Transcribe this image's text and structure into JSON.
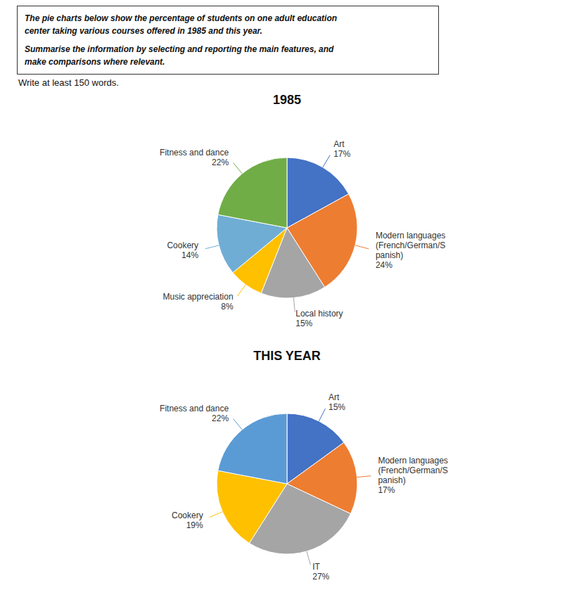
{
  "annotations": [
    "The pie charts below show the percentage of students on one adult education",
    "center taking various courses offered in 1985 and this year.",
    "Summarise the information by selecting and reporting the main features, and",
    "make comparisons where relevant."
  ],
  "subtitle": "Write at least 150 words.",
  "chart_data": [
    {
      "type": "pie",
      "title": "1985",
      "categories": [
        "Art",
        "Modern languages\n(French/German/S\npanish)",
        "Local history",
        "Music appreciation",
        "Cookery",
        "Fitness and dance"
      ],
      "values": [
        17,
        24,
        15,
        8,
        14,
        22
      ],
      "value_labels": [
        "17%",
        "24%",
        "15%",
        "8%",
        "14%",
        "22%"
      ],
      "colors": [
        "#4472C4",
        "#ED7D31",
        "#A5A5A5",
        "#FFC000",
        "#70ADD4",
        "#70AD47"
      ],
      "data_labels": true
    },
    {
      "type": "pie",
      "title": "THIS YEAR",
      "categories": [
        "Art",
        "Modern languages\n(French/German/S\npanish)",
        "IT",
        "Cookery",
        "Fitness and dance"
      ],
      "values": [
        15,
        17,
        27,
        19,
        22
      ],
      "value_labels": [
        "15%",
        "17%",
        "27%",
        "19%",
        "22%"
      ],
      "colors": [
        "#4472C4",
        "#ED7D31",
        "#A5A5A5",
        "#FFC000",
        "#5B9BD5"
      ],
      "data_labels": true
    }
  ]
}
